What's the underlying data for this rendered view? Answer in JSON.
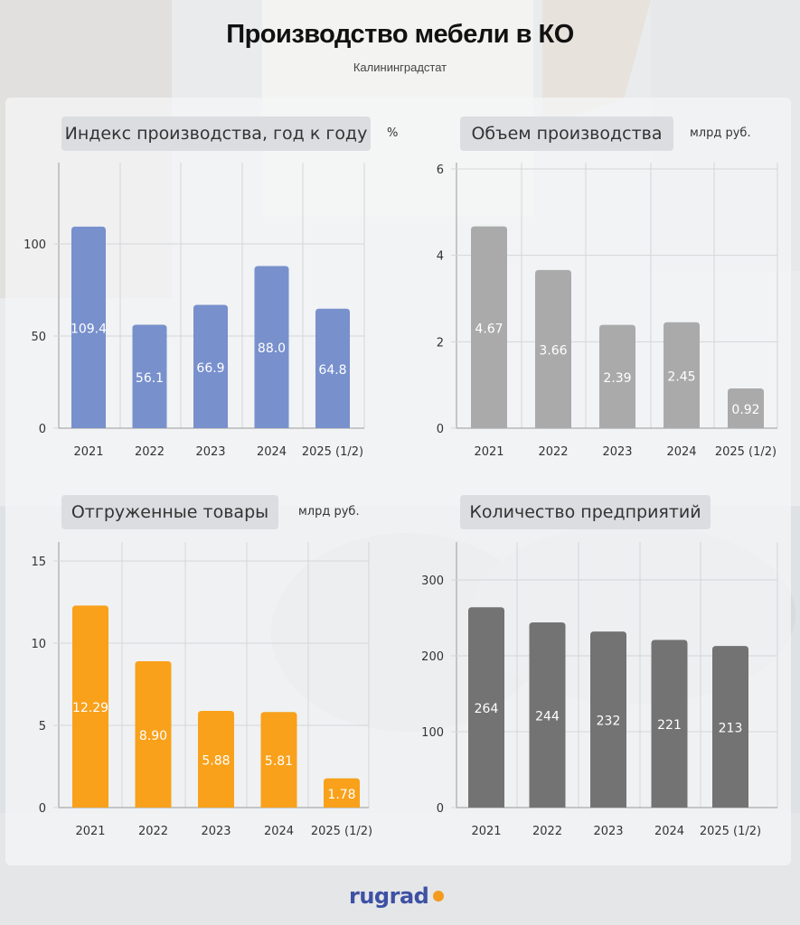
{
  "title": "Производство мебели в КО",
  "subtitle": "Калининградстат",
  "logo": "rugrad",
  "colors": {
    "index": "#7890cc",
    "volume": "#aaaaaa",
    "shipped": "#f9a11b",
    "enterprises": "#737373"
  },
  "chart_data": [
    {
      "type": "bar",
      "title": "Индекс производства, год к году",
      "unit": "%",
      "categories": [
        "2021",
        "2022",
        "2023",
        "2024",
        "2025 (1/2)"
      ],
      "values": [
        109.4,
        56.1,
        66.9,
        88.0,
        64.8
      ],
      "value_labels": [
        "109.4",
        "56.1",
        "66.9",
        "88.0",
        "64.8"
      ],
      "ylim": [
        0,
        150
      ],
      "yticks": [
        0,
        50,
        100
      ],
      "grid": true
    },
    {
      "type": "bar",
      "title": "Объем производства",
      "unit": "млрд руб.",
      "categories": [
        "2021",
        "2022",
        "2023",
        "2024",
        "2025 (1/2)"
      ],
      "values": [
        4.67,
        3.66,
        2.39,
        2.45,
        0.92
      ],
      "value_labels": [
        "4.67",
        "3.66",
        "2.39",
        "2.45",
        "0.92"
      ],
      "ylim": [
        0,
        6
      ],
      "yticks": [
        0,
        2,
        4,
        6
      ],
      "grid": true
    },
    {
      "type": "bar",
      "title": "Отгруженные товары",
      "unit": "млрд руб.",
      "categories": [
        "2021",
        "2022",
        "2023",
        "2024",
        "2025 (1/2)"
      ],
      "values": [
        12.29,
        8.9,
        5.88,
        5.81,
        1.78
      ],
      "value_labels": [
        "12.29",
        "8.90",
        "5.88",
        "5.81",
        "1.78"
      ],
      "ylim": [
        0,
        16
      ],
      "yticks": [
        0,
        5,
        10,
        15
      ],
      "grid": true
    },
    {
      "type": "bar",
      "title": "Количество предприятий",
      "unit": "",
      "categories": [
        "2021",
        "2022",
        "2023",
        "2024",
        "2025 (1/2)"
      ],
      "values": [
        264,
        244,
        232,
        221,
        213
      ],
      "value_labels": [
        "264",
        "244",
        "232",
        "221",
        "213"
      ],
      "ylim": [
        0,
        350
      ],
      "yticks": [
        0,
        100,
        200,
        300
      ],
      "grid": true
    }
  ]
}
